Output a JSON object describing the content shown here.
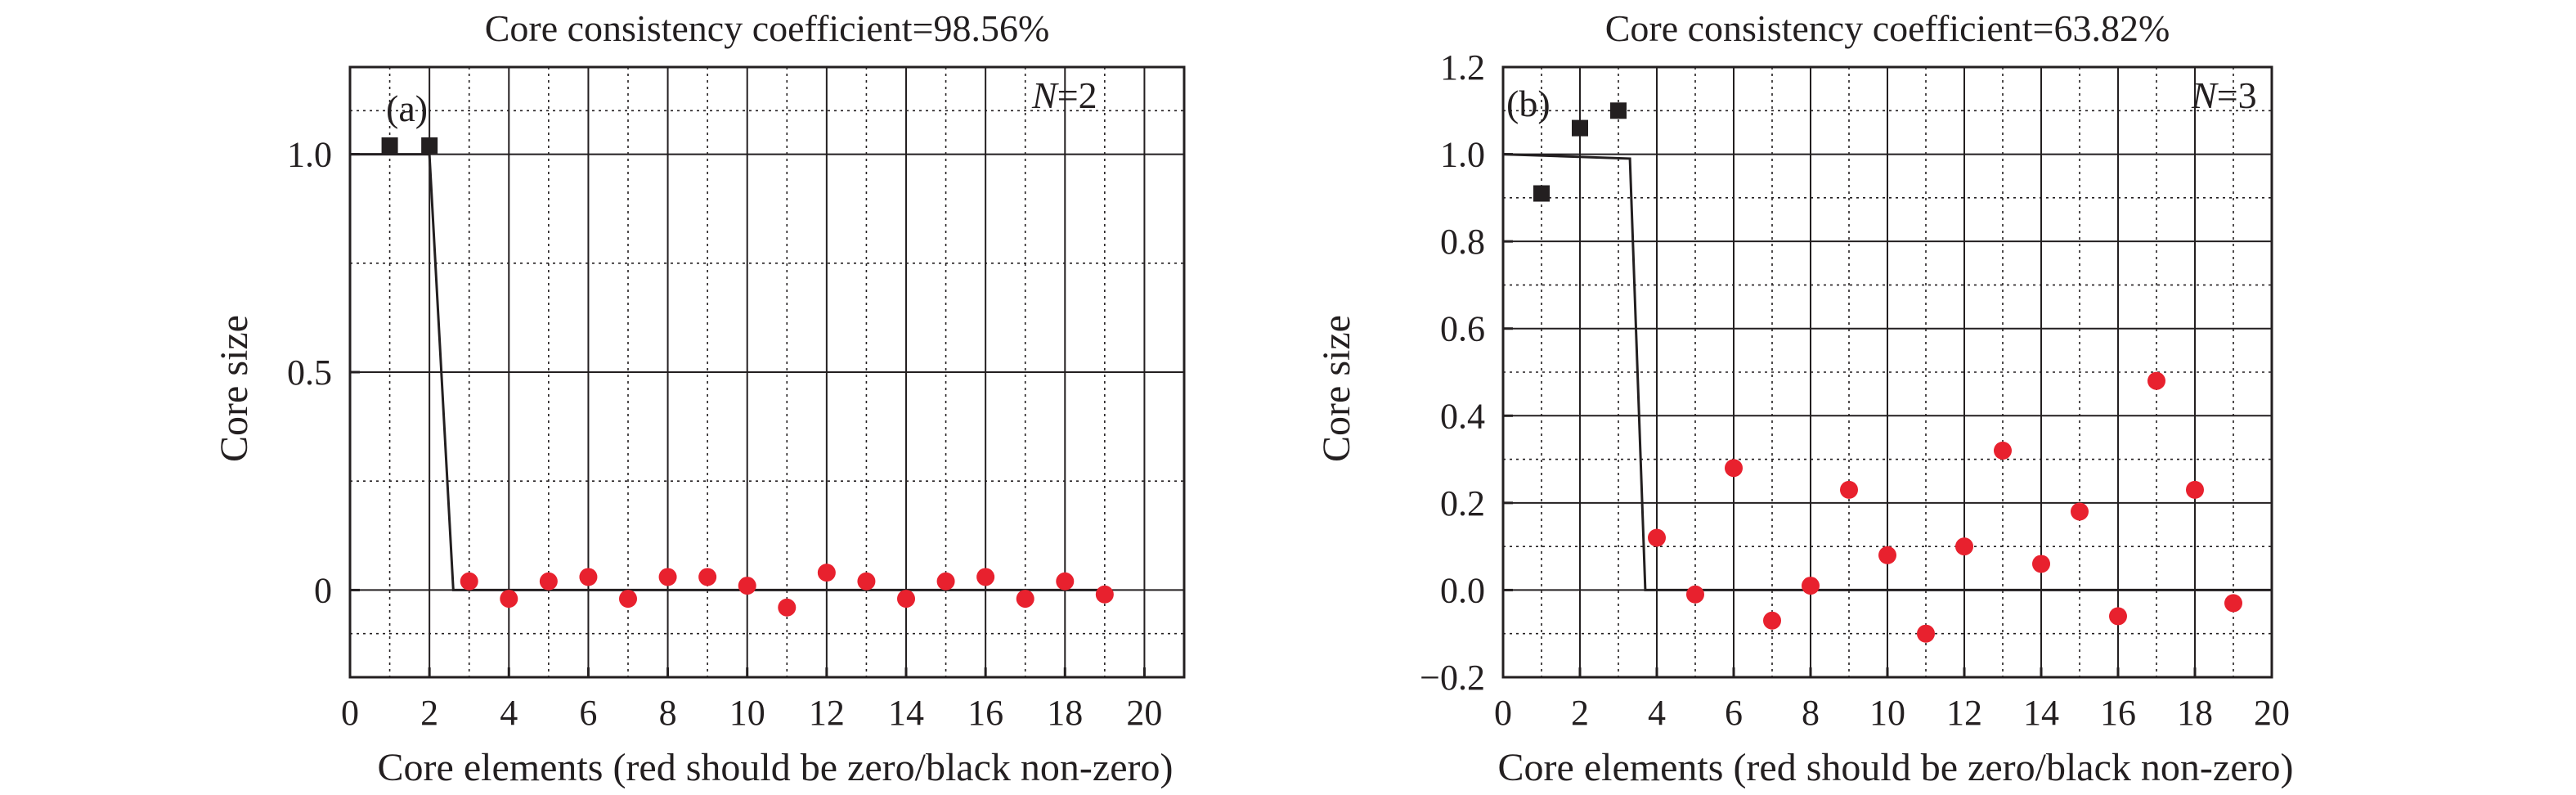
{
  "chart_data": [
    {
      "type": "scatter",
      "title": "Core consistency coefficient=98.56%",
      "panel_label": "(a)",
      "annotation_italic": "N",
      "annotation_rest": "=2",
      "xlabel": "Core elements (red should be zero/black non-zero)",
      "ylabel": "Core size",
      "xlim": [
        0,
        21
      ],
      "ylim": [
        -0.2,
        1.2
      ],
      "x_ticks": [
        0,
        2,
        4,
        6,
        8,
        10,
        12,
        14,
        16,
        18,
        20
      ],
      "x_tick_labels": [
        "0",
        "2",
        "4",
        "6",
        "8",
        "10",
        "12",
        "14",
        "16",
        "18",
        "20"
      ],
      "y_ticks": [
        0,
        0.5,
        1.0
      ],
      "y_tick_labels": [
        "0",
        "0.5",
        "1.0"
      ],
      "grid": true,
      "series": [
        {
          "marker": "square",
          "color": "#231f20",
          "x": [
            1,
            2
          ],
          "y": [
            1.02,
            1.02
          ]
        },
        {
          "marker": "circle",
          "color": "#e8212e",
          "x": [
            3,
            4,
            5,
            6,
            7,
            8,
            9,
            10,
            11,
            12,
            13,
            14,
            15,
            16,
            17,
            18,
            19
          ],
          "y": [
            0.02,
            -0.02,
            0.02,
            0.03,
            -0.02,
            0.03,
            0.03,
            0.01,
            -0.04,
            0.04,
            0.02,
            -0.02,
            0.02,
            0.03,
            -0.02,
            0.02,
            -0.01
          ]
        }
      ],
      "ideal_line": {
        "x": [
          0,
          2,
          2.6,
          19
        ],
        "y": [
          1.0,
          1.0,
          0.0,
          0.0
        ]
      }
    },
    {
      "type": "scatter",
      "title": "Core consistency coefficient=63.82%",
      "panel_label": "(b)",
      "annotation_italic": "N",
      "annotation_rest": "=3",
      "xlabel": "Core elements (red should be zero/black non-zero)",
      "ylabel": "Core size",
      "xlim": [
        0,
        20
      ],
      "ylim": [
        -0.2,
        1.2
      ],
      "x_ticks": [
        0,
        2,
        4,
        6,
        8,
        10,
        12,
        14,
        16,
        18,
        20
      ],
      "x_tick_labels": [
        "0",
        "2",
        "4",
        "6",
        "8",
        "10",
        "12",
        "14",
        "16",
        "18",
        "20"
      ],
      "y_ticks": [
        -0.2,
        0.0,
        0.2,
        0.4,
        0.6,
        0.8,
        1.0,
        1.2
      ],
      "y_tick_labels": [
        "−0.2",
        "0.0",
        "0.2",
        "0.4",
        "0.6",
        "0.8",
        "1.0",
        "1.2"
      ],
      "grid": true,
      "series": [
        {
          "marker": "square",
          "color": "#231f20",
          "x": [
            1,
            2,
            3
          ],
          "y": [
            0.91,
            1.06,
            1.1
          ]
        },
        {
          "marker": "circle",
          "color": "#e8212e",
          "x": [
            4,
            5,
            6,
            7,
            8,
            9,
            10,
            11,
            12,
            13,
            14,
            15,
            16,
            17,
            18,
            19
          ],
          "y": [
            0.12,
            -0.01,
            0.28,
            -0.07,
            0.01,
            0.23,
            0.08,
            -0.1,
            0.1,
            0.32,
            0.06,
            0.18,
            -0.06,
            0.48,
            0.23,
            -0.03
          ]
        }
      ],
      "ideal_line": {
        "x": [
          0,
          3.3,
          3.7,
          20
        ],
        "y": [
          1.0,
          0.99,
          0.0,
          0.0
        ]
      }
    }
  ]
}
